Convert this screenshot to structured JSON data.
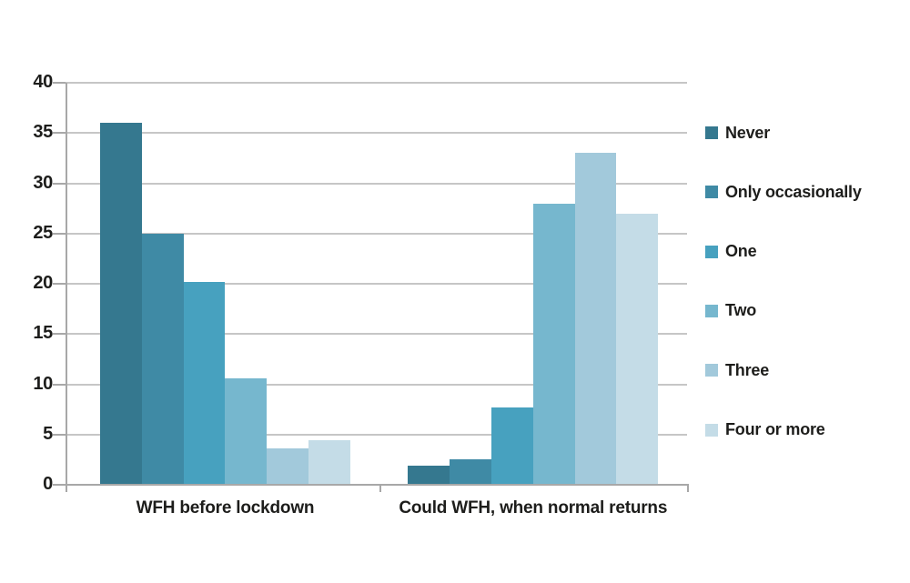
{
  "chart_data": {
    "type": "bar",
    "title": "",
    "xlabel": "",
    "ylabel": "",
    "categories": [
      "WFH before lockdown",
      "Could WFH, when normal returns"
    ],
    "series": [
      {
        "name": "Never",
        "color": "#35788f",
        "values": [
          36,
          1.9
        ]
      },
      {
        "name": "Only occasionally",
        "color": "#3f8aa5",
        "values": [
          25,
          2.5
        ]
      },
      {
        "name": "One",
        "color": "#47a1bf",
        "values": [
          20.2,
          7.7
        ]
      },
      {
        "name": "Two",
        "color": "#76b7ce",
        "values": [
          10.6,
          28
        ]
      },
      {
        "name": "Three",
        "color": "#a2c9db",
        "values": [
          3.6,
          33
        ]
      },
      {
        "name": "Four or more",
        "color": "#c4dce7",
        "values": [
          4.4,
          27
        ]
      }
    ],
    "ylim": [
      0,
      40
    ],
    "yticks": [
      0,
      5,
      10,
      15,
      20,
      25,
      30,
      35,
      40
    ],
    "grid": true,
    "legend_position": "right"
  },
  "colors": {
    "background": "#ffffff",
    "gridline": "#c6c6c6",
    "axis": "#a8a8a8",
    "text": "#1d1d1b"
  }
}
